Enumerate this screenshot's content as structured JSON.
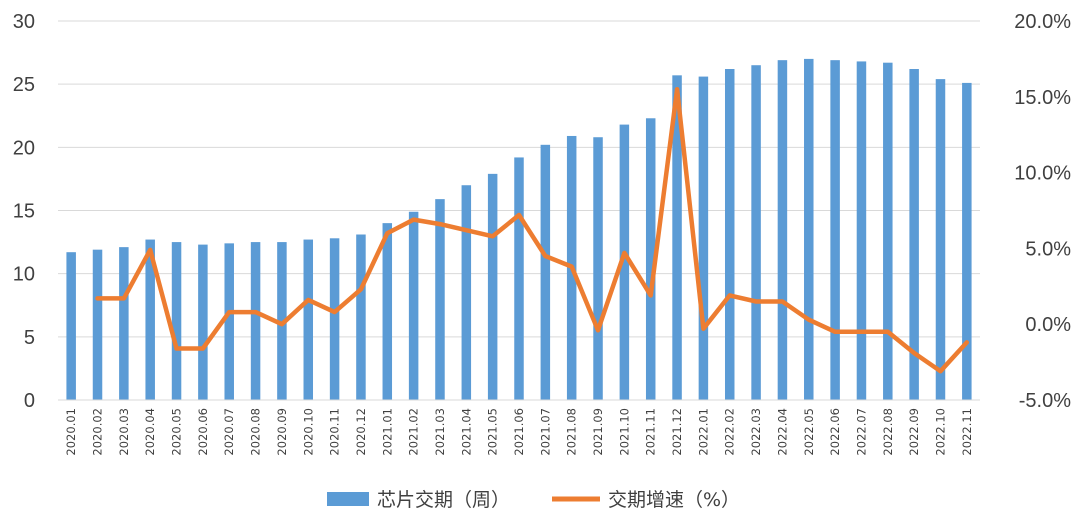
{
  "chart_data": {
    "type": "bar",
    "categories": [
      "2020.01",
      "2020.02",
      "2020.03",
      "2020.04",
      "2020.05",
      "2020.06",
      "2020.07",
      "2020.08",
      "2020.09",
      "2020.10",
      "2020.11",
      "2020.12",
      "2021.01",
      "2021.02",
      "2021.03",
      "2021.04",
      "2021.05",
      "2021.06",
      "2021.07",
      "2021.08",
      "2021.09",
      "2021.10",
      "2021.11",
      "2021.12",
      "2022.01",
      "2022.02",
      "2022.03",
      "2022.04",
      "2022.05",
      "2022.06",
      "2022.07",
      "2022.08",
      "2022.09",
      "2022.10",
      "2022.11"
    ],
    "series": [
      {
        "name": "芯片交期（周）",
        "type": "bar",
        "axis": "left",
        "color": "#5B9BD5",
        "values": [
          11.7,
          11.9,
          12.1,
          12.7,
          12.5,
          12.3,
          12.4,
          12.5,
          12.5,
          12.7,
          12.8,
          13.1,
          14.0,
          14.9,
          15.9,
          17.0,
          17.9,
          19.2,
          20.2,
          20.9,
          20.8,
          21.8,
          22.3,
          25.7,
          25.6,
          26.2,
          26.5,
          26.9,
          27.0,
          26.9,
          26.8,
          26.7,
          26.2,
          25.4,
          25.1
        ]
      },
      {
        "name": "交期增速（%）",
        "type": "line",
        "axis": "right",
        "color": "#ED7D31",
        "values": [
          null,
          1.7,
          1.7,
          4.9,
          -1.6,
          -1.6,
          0.8,
          0.8,
          0.0,
          1.6,
          0.8,
          2.3,
          6.0,
          6.9,
          6.6,
          6.2,
          5.8,
          7.2,
          4.5,
          3.8,
          -0.4,
          4.7,
          1.9,
          15.5,
          -0.3,
          1.9,
          1.5,
          1.5,
          0.3,
          -0.5,
          -0.5,
          -0.5,
          -1.9,
          -3.1,
          -1.2
        ]
      }
    ],
    "y_left": {
      "min": 0,
      "max": 30,
      "ticks": [
        "0",
        "5",
        "10",
        "15",
        "20",
        "25",
        "30"
      ]
    },
    "y_right": {
      "min": -5,
      "max": 20,
      "ticks": [
        "-5.0%",
        "0.0%",
        "5.0%",
        "10.0%",
        "15.0%",
        "20.0%"
      ]
    },
    "grid": true,
    "legend": "bottom"
  }
}
